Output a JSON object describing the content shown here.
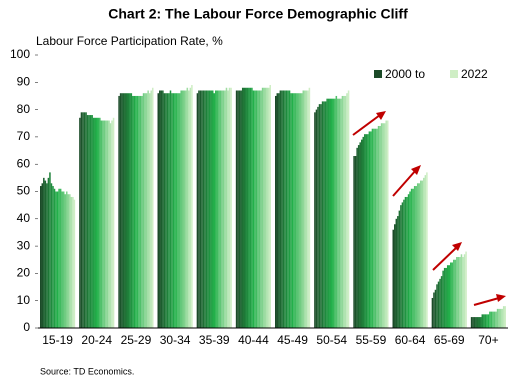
{
  "chart_data": {
    "type": "bar",
    "title": "Chart 2: The Labour Force Demographic Cliff",
    "ylabel": "Labour Force Participation Rate, %",
    "source": "Source: TD Economics.",
    "legend": [
      "2000 to",
      "2022"
    ],
    "colors": [
      "#1b4a28",
      "#22b04a",
      "#cfeec5"
    ],
    "categories": [
      "15-19",
      "20-24",
      "25-29",
      "30-34",
      "35-39",
      "40-44",
      "45-49",
      "50-54",
      "55-59",
      "60-64",
      "65-69",
      "70+"
    ],
    "values": [
      [
        52,
        53,
        55,
        54,
        53,
        55,
        57,
        53,
        52,
        51,
        50,
        50,
        51,
        51,
        50,
        50,
        49,
        50,
        49,
        49,
        48,
        48,
        47
      ],
      [
        77,
        79,
        79,
        79,
        79,
        78,
        78,
        78,
        78,
        77,
        77,
        77,
        77,
        77,
        76,
        76,
        76,
        76,
        76,
        76,
        75,
        76,
        77
      ],
      [
        85,
        86,
        86,
        86,
        86,
        86,
        86,
        86,
        86,
        85,
        85,
        85,
        85,
        85,
        85,
        85,
        86,
        86,
        86,
        87,
        86,
        87,
        88
      ],
      [
        86,
        87,
        87,
        87,
        86,
        86,
        86,
        86,
        87,
        86,
        86,
        86,
        86,
        86,
        86,
        87,
        87,
        87,
        87,
        88,
        87,
        88,
        89
      ],
      [
        86,
        87,
        87,
        87,
        87,
        87,
        87,
        87,
        87,
        87,
        87,
        86,
        87,
        87,
        87,
        87,
        87,
        87,
        87,
        88,
        87,
        88,
        88
      ],
      [
        87,
        87,
        87,
        87,
        88,
        88,
        88,
        88,
        88,
        88,
        88,
        87,
        87,
        87,
        87,
        87,
        87,
        88,
        88,
        88,
        88,
        88,
        89
      ],
      [
        85,
        86,
        86,
        87,
        87,
        87,
        87,
        87,
        87,
        87,
        86,
        86,
        86,
        86,
        86,
        86,
        86,
        86,
        87,
        87,
        87,
        87,
        88
      ],
      [
        79,
        80,
        81,
        82,
        82,
        83,
        83,
        83,
        84,
        84,
        84,
        84,
        84,
        84,
        85,
        84,
        84,
        84,
        85,
        85,
        85,
        86,
        87
      ],
      [
        63,
        63,
        66,
        67,
        68,
        69,
        70,
        71,
        71,
        71,
        72,
        72,
        73,
        73,
        73,
        73,
        74,
        74,
        75,
        75,
        75,
        76,
        76
      ],
      [
        36,
        38,
        40,
        41,
        43,
        45,
        46,
        47,
        48,
        48,
        49,
        50,
        51,
        51,
        52,
        52,
        53,
        53,
        54,
        54,
        55,
        56,
        57
      ],
      [
        11,
        13,
        14,
        16,
        17,
        18,
        19,
        21,
        22,
        22,
        23,
        23,
        24,
        24,
        25,
        25,
        26,
        26,
        26,
        27,
        26,
        27,
        28
      ],
      [
        4,
        4,
        4,
        4,
        4,
        4,
        4,
        5,
        5,
        5,
        5,
        5,
        6,
        6,
        6,
        6,
        6,
        7,
        7,
        7,
        7,
        8,
        8
      ]
    ],
    "ylim": [
      0,
      100
    ],
    "yticks": [
      0,
      10,
      20,
      30,
      40,
      50,
      60,
      70,
      80,
      90,
      100
    ]
  }
}
